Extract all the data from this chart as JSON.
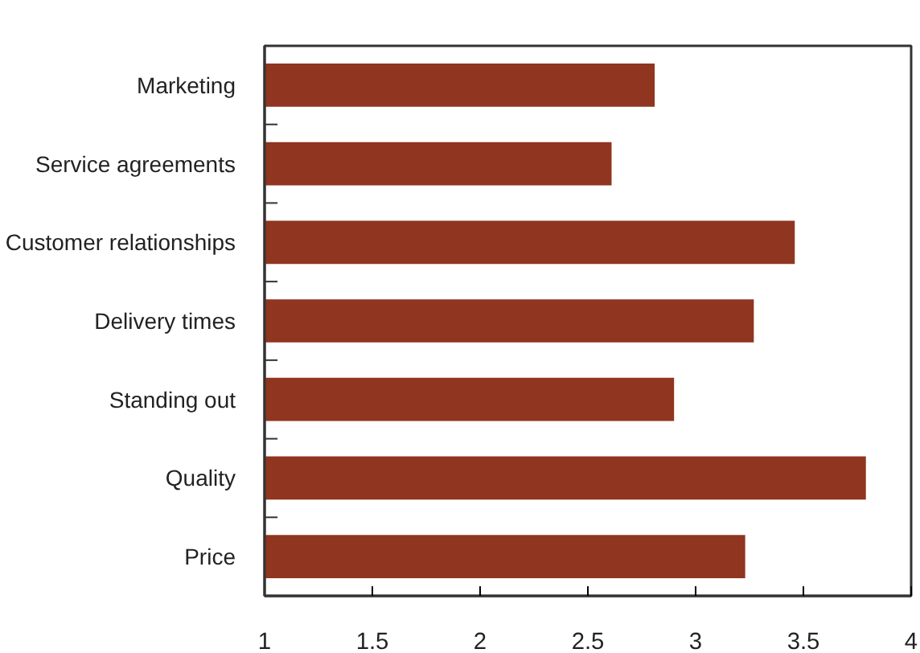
{
  "chart_data": {
    "type": "bar",
    "orientation": "horizontal",
    "categories": [
      "Marketing",
      "Service agreements",
      "Customer relationships",
      "Delivery times",
      "Standing out",
      "Quality",
      "Price"
    ],
    "values": [
      2.81,
      2.61,
      3.46,
      3.27,
      2.9,
      3.79,
      3.23
    ],
    "color": "#8f3520",
    "xlim": [
      1,
      4
    ],
    "xticks": [
      1,
      1.5,
      2,
      2.5,
      3,
      3.5,
      4
    ],
    "grid": false
  }
}
